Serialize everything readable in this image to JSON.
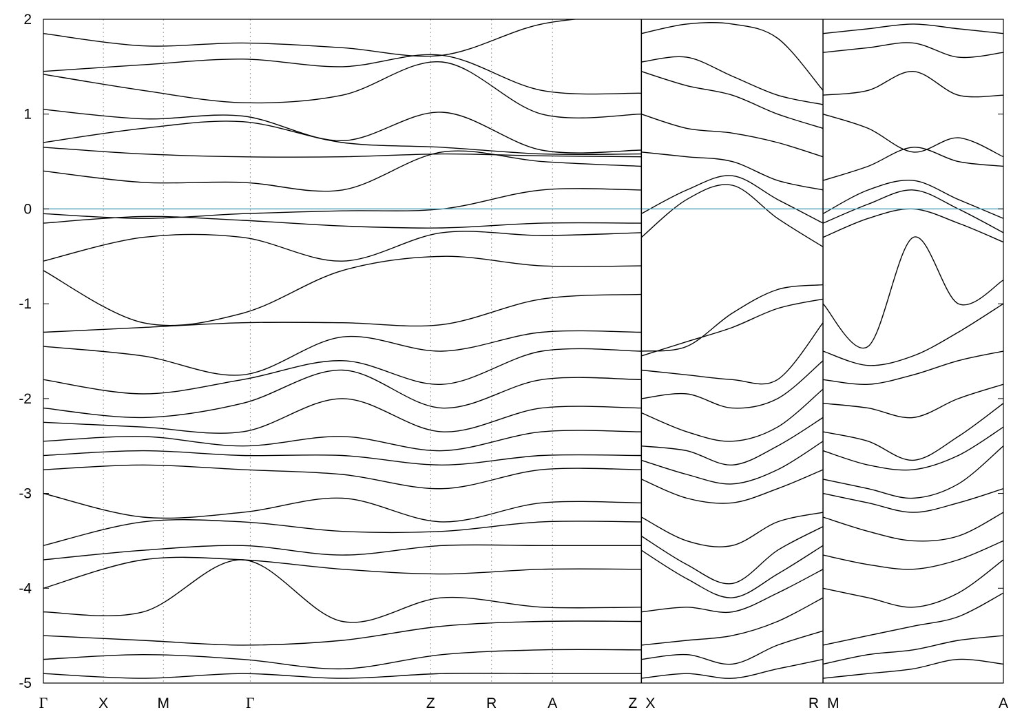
{
  "chart_data": {
    "type": "line",
    "title": "",
    "xlabel": "",
    "ylabel": "",
    "ylim": [
      -5,
      2
    ],
    "y_ticks": [
      {
        "value": 2,
        "label": "2"
      },
      {
        "value": 1,
        "label": "1"
      },
      {
        "value": 0,
        "label": "0"
      },
      {
        "value": -1,
        "label": "-1"
      },
      {
        "value": -2,
        "label": "-2"
      },
      {
        "value": -3,
        "label": "-3"
      },
      {
        "value": -4,
        "label": "-4"
      },
      {
        "value": -5,
        "label": "-5"
      }
    ],
    "x_range": [
      0,
      1
    ],
    "k_points": [
      {
        "label": "Γ",
        "x": 0.0
      },
      {
        "label": "X",
        "x": 0.0625
      },
      {
        "label": "M",
        "x": 0.125
      },
      {
        "label": "Γ",
        "x": 0.2155
      },
      {
        "label": "Z",
        "x": 0.4034
      },
      {
        "label": "R",
        "x": 0.4668
      },
      {
        "label": "A",
        "x": 0.5303
      },
      {
        "label": "Z",
        "x": 0.6229
      },
      {
        "label": "X",
        "x": 0.6229
      },
      {
        "label": "R",
        "x": 0.8121
      },
      {
        "label": "M",
        "x": 0.8121
      },
      {
        "label": "A",
        "x": 1.0
      }
    ],
    "panel_breaks": [
      0.6229,
      0.8121
    ],
    "fermi_level": 0,
    "grid": "vertical dotted at high-symmetry points",
    "colors": {
      "bands": "#000000",
      "fermi_line": "#5ba8bf",
      "grid": "#999999"
    },
    "segments": [
      {
        "x0": 0.0,
        "x1": 0.6229,
        "bands": [
          [
            1.85,
            1.72,
            1.75,
            1.7,
            1.62,
            1.95,
            2.05
          ],
          [
            1.45,
            1.52,
            1.58,
            1.5,
            1.62,
            1.25,
            1.22
          ],
          [
            1.42,
            1.25,
            1.12,
            1.2,
            1.55,
            1.0,
            1.0
          ],
          [
            1.05,
            0.95,
            0.98,
            0.72,
            1.02,
            0.62,
            0.62
          ],
          [
            0.7,
            0.85,
            0.92,
            0.7,
            0.65,
            0.58,
            0.58
          ],
          [
            0.65,
            0.58,
            0.55,
            0.55,
            0.58,
            0.56,
            0.55
          ],
          [
            0.4,
            0.28,
            0.28,
            0.2,
            0.6,
            0.5,
            0.45
          ],
          [
            -0.05,
            -0.1,
            -0.05,
            -0.02,
            0.0,
            0.2,
            0.2
          ],
          [
            -0.15,
            -0.08,
            -0.12,
            -0.18,
            -0.2,
            -0.15,
            -0.15
          ],
          [
            -0.55,
            -0.3,
            -0.3,
            -0.55,
            -0.25,
            -0.28,
            -0.25
          ],
          [
            -0.65,
            -1.2,
            -1.1,
            -0.65,
            -0.5,
            -0.6,
            -0.6
          ],
          [
            -1.3,
            -1.25,
            -1.2,
            -1.2,
            -1.22,
            -0.95,
            -0.9
          ],
          [
            -1.45,
            -1.55,
            -1.75,
            -1.35,
            -1.5,
            -1.3,
            -1.3
          ],
          [
            -1.8,
            -1.95,
            -1.8,
            -1.6,
            -1.85,
            -1.5,
            -1.5
          ],
          [
            -2.1,
            -2.2,
            -2.05,
            -1.7,
            -2.1,
            -1.8,
            -1.8
          ],
          [
            -2.25,
            -2.3,
            -2.35,
            -2.0,
            -2.35,
            -2.1,
            -2.1
          ],
          [
            -2.45,
            -2.4,
            -2.5,
            -2.4,
            -2.55,
            -2.35,
            -2.35
          ],
          [
            -2.6,
            -2.55,
            -2.6,
            -2.6,
            -2.7,
            -2.6,
            -2.6
          ],
          [
            -2.75,
            -2.7,
            -2.75,
            -2.8,
            -2.95,
            -2.75,
            -2.75
          ],
          [
            -3.0,
            -3.25,
            -3.2,
            -3.05,
            -3.3,
            -3.1,
            -3.1
          ],
          [
            -3.55,
            -3.3,
            -3.3,
            -3.4,
            -3.4,
            -3.3,
            -3.3
          ],
          [
            -3.7,
            -3.6,
            -3.55,
            -3.65,
            -3.55,
            -3.55,
            -3.55
          ],
          [
            -4.0,
            -3.7,
            -3.7,
            -3.8,
            -3.85,
            -3.8,
            -3.8
          ],
          [
            -4.25,
            -4.25,
            -3.7,
            -4.35,
            -4.1,
            -4.2,
            -4.2
          ],
          [
            -4.5,
            -4.55,
            -4.6,
            -4.55,
            -4.4,
            -4.35,
            -4.35
          ],
          [
            -4.75,
            -4.7,
            -4.75,
            -4.85,
            -4.7,
            -4.65,
            -4.65
          ],
          [
            -4.9,
            -4.95,
            -4.9,
            -4.95,
            -4.9,
            -4.9,
            -4.9
          ]
        ]
      },
      {
        "x0": 0.6229,
        "x1": 0.8121,
        "bands": [
          [
            1.85,
            1.95,
            1.95,
            1.8,
            1.25
          ],
          [
            1.55,
            1.6,
            1.4,
            1.2,
            1.1
          ],
          [
            1.45,
            1.3,
            1.2,
            1.0,
            0.85
          ],
          [
            1.0,
            0.85,
            0.8,
            0.7,
            0.55
          ],
          [
            0.6,
            0.55,
            0.5,
            0.3,
            0.2
          ],
          [
            -0.05,
            0.2,
            0.35,
            0.1,
            -0.15
          ],
          [
            -0.3,
            0.1,
            0.25,
            -0.1,
            -0.4
          ],
          [
            -1.5,
            -1.45,
            -1.1,
            -0.85,
            -0.8
          ],
          [
            -1.55,
            -1.4,
            -1.25,
            -1.05,
            -0.95
          ],
          [
            -1.7,
            -1.75,
            -1.8,
            -1.8,
            -1.2
          ],
          [
            -2.0,
            -1.95,
            -2.1,
            -2.0,
            -1.6
          ],
          [
            -2.15,
            -2.35,
            -2.45,
            -2.3,
            -1.9
          ],
          [
            -2.5,
            -2.55,
            -2.7,
            -2.5,
            -2.2
          ],
          [
            -2.65,
            -2.8,
            -2.9,
            -2.75,
            -2.45
          ],
          [
            -2.85,
            -3.05,
            -3.1,
            -2.95,
            -2.75
          ],
          [
            -3.25,
            -3.5,
            -3.55,
            -3.3,
            -3.2
          ],
          [
            -3.45,
            -3.75,
            -3.95,
            -3.6,
            -3.35
          ],
          [
            -3.6,
            -3.9,
            -4.1,
            -3.85,
            -3.55
          ],
          [
            -4.25,
            -4.2,
            -4.25,
            -4.05,
            -3.8
          ],
          [
            -4.6,
            -4.55,
            -4.5,
            -4.35,
            -4.1
          ],
          [
            -4.75,
            -4.7,
            -4.8,
            -4.6,
            -4.45
          ],
          [
            -4.95,
            -4.9,
            -4.95,
            -4.85,
            -4.75
          ]
        ]
      },
      {
        "x0": 0.8121,
        "x1": 1.0,
        "bands": [
          [
            1.85,
            1.9,
            1.95,
            1.9,
            1.85
          ],
          [
            1.65,
            1.7,
            1.75,
            1.6,
            1.65
          ],
          [
            1.2,
            1.25,
            1.45,
            1.2,
            1.2
          ],
          [
            1.0,
            0.85,
            0.6,
            0.75,
            0.55
          ],
          [
            0.3,
            0.45,
            0.65,
            0.5,
            0.45
          ],
          [
            -0.05,
            0.2,
            0.3,
            0.1,
            -0.1
          ],
          [
            -0.15,
            0.05,
            0.2,
            0.0,
            -0.25
          ],
          [
            -0.3,
            -0.1,
            0.0,
            -0.15,
            -0.35
          ],
          [
            -1.0,
            -1.45,
            -0.3,
            -1.0,
            -0.75
          ],
          [
            -1.5,
            -1.65,
            -1.55,
            -1.3,
            -1.0
          ],
          [
            -1.8,
            -1.85,
            -1.75,
            -1.6,
            -1.5
          ],
          [
            -2.05,
            -2.1,
            -2.2,
            -2.0,
            -1.85
          ],
          [
            -2.35,
            -2.45,
            -2.65,
            -2.4,
            -2.05
          ],
          [
            -2.55,
            -2.7,
            -2.75,
            -2.6,
            -2.3
          ],
          [
            -2.85,
            -2.95,
            -3.05,
            -2.9,
            -2.5
          ],
          [
            -3.0,
            -3.1,
            -3.2,
            -3.1,
            -2.95
          ],
          [
            -3.25,
            -3.4,
            -3.5,
            -3.45,
            -3.2
          ],
          [
            -3.65,
            -3.75,
            -3.8,
            -3.7,
            -3.5
          ],
          [
            -4.0,
            -4.1,
            -4.2,
            -4.05,
            -3.7
          ],
          [
            -4.6,
            -4.5,
            -4.4,
            -4.3,
            -4.05
          ],
          [
            -4.8,
            -4.7,
            -4.65,
            -4.55,
            -4.5
          ],
          [
            -4.95,
            -4.9,
            -4.85,
            -4.75,
            -4.8
          ]
        ]
      }
    ]
  }
}
